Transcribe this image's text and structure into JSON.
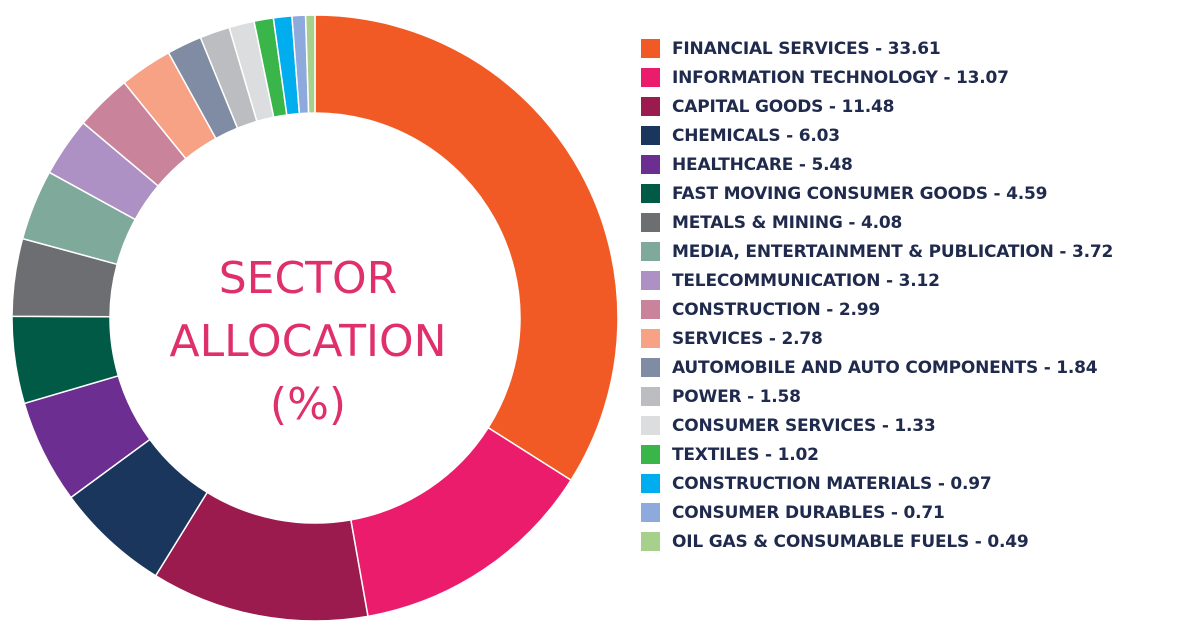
{
  "chart_data": {
    "type": "pie",
    "title_lines": [
      "SECTOR",
      "ALLOCATION",
      "(%)"
    ],
    "labels": [
      "FINANCIAL SERVICES - 33.61",
      "INFORMATION TECHNOLOGY - 13.07",
      "CAPITAL GOODS - 11.48",
      "CHEMICALS - 6.03",
      "HEALTHCARE - 5.48",
      "FAST MOVING CONSUMER GOODS - 4.59",
      "METALS & MINING - 4.08",
      "MEDIA, ENTERTAINMENT & PUBLICATION - 3.72",
      "TELECOMMUNICATION - 3.12",
      "CONSTRUCTION - 2.99",
      "SERVICES - 2.78",
      "AUTOMOBILE AND AUTO COMPONENTS - 1.84",
      "POWER - 1.58",
      "CONSUMER SERVICES - 1.33",
      "TEXTILES - 1.02",
      "CONSTRUCTION MATERIALS - 0.97",
      "CONSUMER DURABLES  - 0.71",
      "OIL GAS & CONSUMABLE FUELS  - 0.49"
    ],
    "values": [
      33.61,
      13.07,
      11.48,
      6.03,
      5.48,
      4.59,
      4.08,
      3.72,
      3.12,
      2.99,
      2.78,
      1.84,
      1.58,
      1.33,
      1.02,
      0.97,
      0.71,
      0.49
    ],
    "colors": [
      "#f15a24",
      "#ec1c6d",
      "#9b1b4e",
      "#1b365d",
      "#6d2e91",
      "#005a46",
      "#6d6e71",
      "#7fa99b",
      "#ad91c4",
      "#c9849b",
      "#f7a185",
      "#7f8ca3",
      "#bcbdc0",
      "#dcdddf",
      "#39b54a",
      "#00aeef",
      "#8ea9db",
      "#a8d08d"
    ],
    "legend_position": "right",
    "donut": true
  }
}
